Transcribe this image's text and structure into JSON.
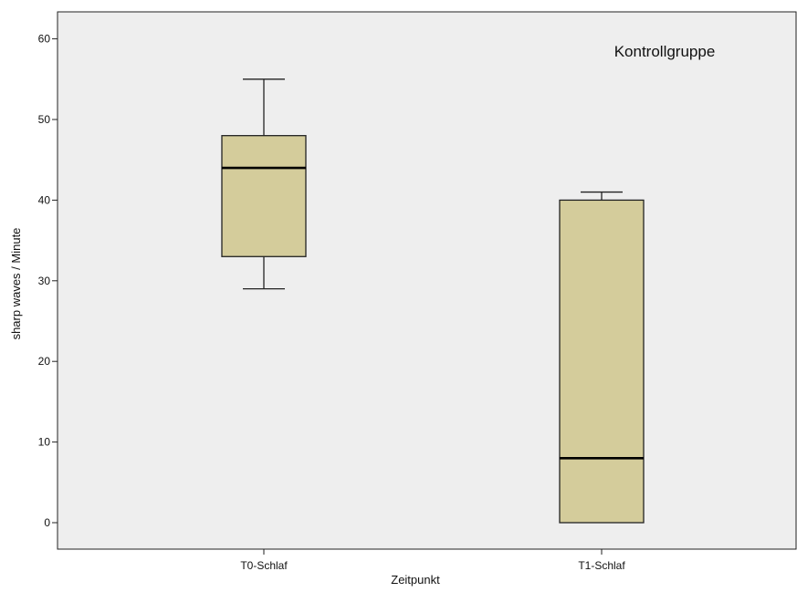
{
  "chart_data": {
    "type": "box",
    "title": "",
    "annotation": "Kontrollgruppe",
    "xlabel": "Zeitpunkt",
    "ylabel": "sharp waves / Minute",
    "ylim": [
      -3.5,
      63.5
    ],
    "yticks": [
      0,
      10,
      20,
      30,
      40,
      50,
      60
    ],
    "grid": false,
    "colors": {
      "plot_bg": "#eeeeee",
      "box_fill": "#d4cc9b",
      "stroke": "#222222"
    },
    "categories": [
      "T0-Schlaf",
      "T1-Schlaf"
    ],
    "boxes": [
      {
        "category": "T0-Schlaf",
        "min": 29,
        "q1": 33,
        "median": 44,
        "q3": 48,
        "max": 55
      },
      {
        "category": "T1-Schlaf",
        "min": 0,
        "q1": 0,
        "median": 8,
        "q3": 40,
        "max": 41
      }
    ]
  }
}
